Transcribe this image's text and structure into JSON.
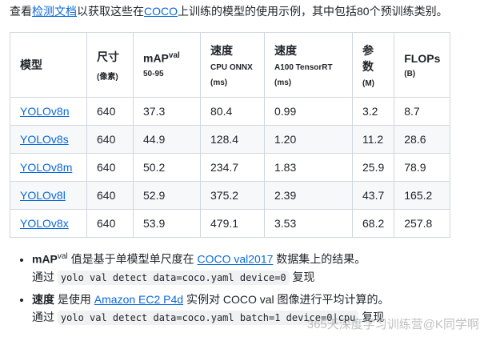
{
  "intro": {
    "before": "查看",
    "link1": "检测文档",
    "middle": "以获取这些在",
    "link2": "COCO",
    "after": "上训练的模型的使用示例，其中包括80个预训练类别。"
  },
  "table": {
    "headers": [
      {
        "title": "模型"
      },
      {
        "title": "尺寸",
        "sub": "(像素)"
      },
      {
        "title": "mAP",
        "sup": "val",
        "sub": "50-95"
      },
      {
        "title": "速度",
        "sub": "CPU ONNX",
        "unit": "(ms)"
      },
      {
        "title": "速度",
        "sub": "A100 TensorRT",
        "unit": "(ms)"
      },
      {
        "title": "参数",
        "sub": "(M)"
      },
      {
        "title": "FLOPs",
        "sub": "(B)"
      }
    ],
    "rows": [
      [
        "YOLOv8n",
        "640",
        "37.3",
        "80.4",
        "0.99",
        "3.2",
        "8.7"
      ],
      [
        "YOLOv8s",
        "640",
        "44.9",
        "128.4",
        "1.20",
        "11.2",
        "28.6"
      ],
      [
        "YOLOv8m",
        "640",
        "50.2",
        "234.7",
        "1.83",
        "25.9",
        "78.9"
      ],
      [
        "YOLOv8l",
        "640",
        "52.9",
        "375.2",
        "2.39",
        "43.7",
        "165.2"
      ],
      [
        "YOLOv8x",
        "640",
        "53.9",
        "479.1",
        "3.53",
        "68.2",
        "257.8"
      ]
    ]
  },
  "notes": [
    {
      "label": "mAP",
      "label_sup": "val",
      "text": " 值是基于单模型单尺度在 ",
      "link": "COCO val2017",
      "after": " 数据集上的结果。",
      "prefix": "通过 ",
      "code": "yolo val detect data=coco.yaml device=0",
      "suffix": " 复现"
    },
    {
      "label": "速度",
      "text": " 是使用 ",
      "link": "Amazon EC2 P4d",
      "after": " 实例对 COCO val 图像进行平均计算的。",
      "prefix": "通过 ",
      "code": "yolo val detect data=coco.yaml batch=1 device=0|cpu",
      "suffix": " 复现"
    }
  ],
  "watermark": "365天深度学习训练营@K同学啊"
}
